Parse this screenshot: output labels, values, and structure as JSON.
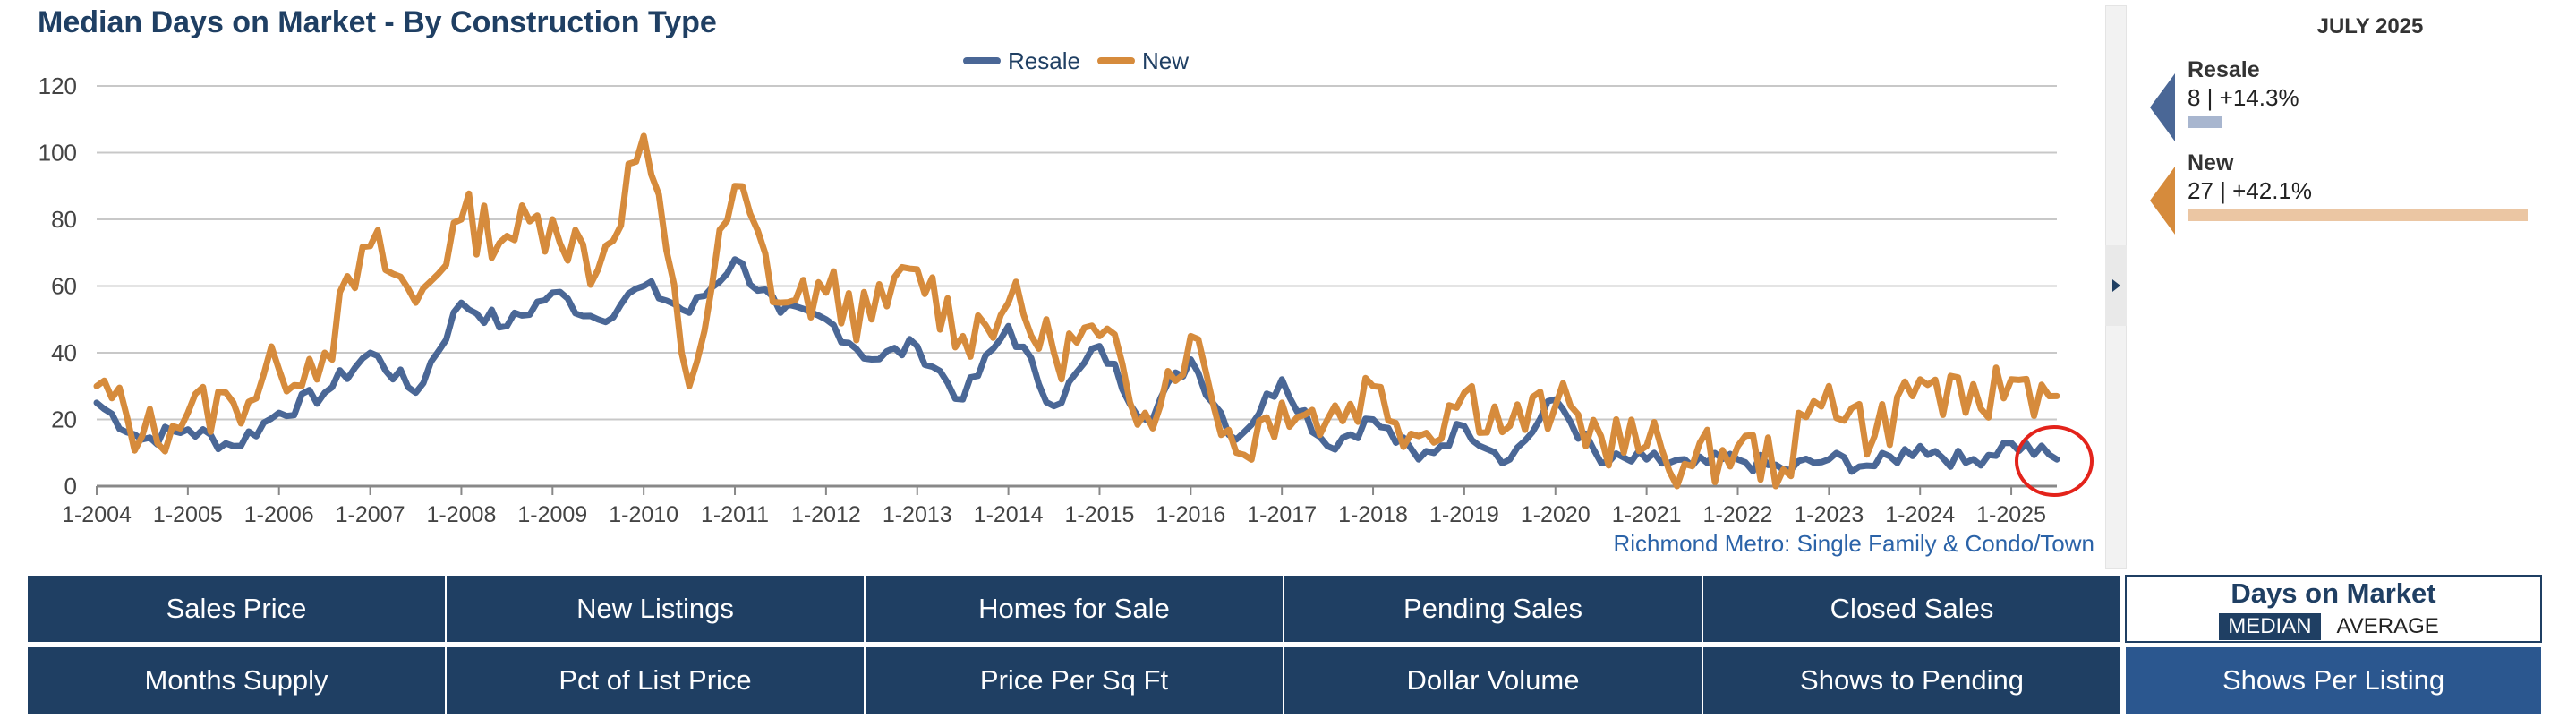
{
  "title": "Median Days on Market - By Construction Type",
  "subtitle_region": "Richmond Metro: Single Family & Condo/Town",
  "legend": [
    {
      "name": "Resale",
      "color": "#4a6796"
    },
    {
      "name": "New",
      "color": "#d68b3c"
    }
  ],
  "chart_data": {
    "type": "line",
    "title": "Median Days on Market - By Construction Type",
    "xlabel": "",
    "ylabel": "",
    "ylim": [
      0,
      120
    ],
    "yticks": [
      0,
      20,
      40,
      60,
      80,
      100,
      120
    ],
    "xticks": [
      "1-2004",
      "1-2005",
      "1-2006",
      "1-2007",
      "1-2008",
      "1-2009",
      "1-2010",
      "1-2011",
      "1-2012",
      "1-2013",
      "1-2014",
      "1-2015",
      "1-2016",
      "1-2017",
      "1-2018",
      "1-2019",
      "1-2020",
      "1-2021",
      "1-2022",
      "1-2023",
      "1-2024",
      "1-2025"
    ],
    "x_start": "1-2004",
    "x_end": "7-2025",
    "grid": true,
    "legend_position": "top-center",
    "series": [
      {
        "name": "Resale",
        "color": "#4a6796",
        "annual_points": [
          [
            "1-2004",
            25
          ],
          [
            "7-2004",
            14
          ],
          [
            "1-2005",
            17
          ],
          [
            "7-2005",
            12
          ],
          [
            "1-2006",
            22
          ],
          [
            "7-2006",
            28
          ],
          [
            "1-2007",
            40
          ],
          [
            "7-2007",
            28
          ],
          [
            "1-2008",
            55
          ],
          [
            "7-2008",
            48
          ],
          [
            "1-2009",
            58
          ],
          [
            "7-2009",
            50
          ],
          [
            "1-2010",
            60
          ],
          [
            "7-2010",
            52
          ],
          [
            "1-2011",
            68
          ],
          [
            "7-2011",
            52
          ],
          [
            "1-2012",
            50
          ],
          [
            "7-2012",
            38
          ],
          [
            "1-2013",
            42
          ],
          [
            "7-2013",
            26
          ],
          [
            "1-2014",
            48
          ],
          [
            "7-2014",
            24
          ],
          [
            "1-2015",
            42
          ],
          [
            "7-2015",
            20
          ],
          [
            "1-2016",
            38
          ],
          [
            "7-2016",
            14
          ],
          [
            "1-2017",
            32
          ],
          [
            "7-2017",
            12
          ],
          [
            "1-2018",
            20
          ],
          [
            "7-2018",
            8
          ],
          [
            "1-2019",
            18
          ],
          [
            "7-2019",
            8
          ],
          [
            "1-2020",
            26
          ],
          [
            "7-2020",
            7
          ],
          [
            "1-2021",
            8
          ],
          [
            "7-2021",
            6
          ],
          [
            "1-2022",
            8
          ],
          [
            "7-2022",
            5
          ],
          [
            "1-2023",
            8
          ],
          [
            "7-2023",
            6
          ],
          [
            "1-2024",
            12
          ],
          [
            "7-2024",
            7
          ],
          [
            "1-2025",
            13
          ],
          [
            "7-2025",
            8
          ]
        ]
      },
      {
        "name": "New",
        "color": "#d68b3c",
        "annual_points": [
          [
            "1-2004",
            30
          ],
          [
            "7-2004",
            15
          ],
          [
            "1-2005",
            22
          ],
          [
            "7-2005",
            25
          ],
          [
            "1-2006",
            35
          ],
          [
            "7-2006",
            40
          ],
          [
            "1-2007",
            72
          ],
          [
            "7-2007",
            55
          ],
          [
            "1-2008",
            80
          ],
          [
            "7-2008",
            75
          ],
          [
            "1-2009",
            80
          ],
          [
            "7-2009",
            65
          ],
          [
            "1-2010",
            105
          ],
          [
            "7-2010",
            30
          ],
          [
            "1-2011",
            90
          ],
          [
            "7-2011",
            55
          ],
          [
            "1-2012",
            58
          ],
          [
            "7-2012",
            50
          ],
          [
            "1-2013",
            65
          ],
          [
            "7-2013",
            45
          ],
          [
            "1-2014",
            55
          ],
          [
            "7-2014",
            40
          ],
          [
            "1-2015",
            45
          ],
          [
            "7-2015",
            22
          ],
          [
            "1-2016",
            45
          ],
          [
            "7-2016",
            10
          ],
          [
            "1-2017",
            25
          ],
          [
            "7-2017",
            20
          ],
          [
            "1-2018",
            30
          ],
          [
            "7-2018",
            15
          ],
          [
            "1-2019",
            28
          ],
          [
            "7-2019",
            18
          ],
          [
            "1-2020",
            24
          ],
          [
            "7-2020",
            15
          ],
          [
            "1-2021",
            12
          ],
          [
            "7-2021",
            6
          ],
          [
            "1-2022",
            12
          ],
          [
            "7-2022",
            5
          ],
          [
            "1-2023",
            30
          ],
          [
            "7-2023",
            15
          ],
          [
            "1-2024",
            32
          ],
          [
            "7-2024",
            22
          ],
          [
            "1-2025",
            32
          ],
          [
            "7-2025",
            27
          ]
        ]
      }
    ]
  },
  "summary": {
    "date": "JULY 2025",
    "items": [
      {
        "name": "Resale",
        "value": "8 | +14.3%",
        "color": "#4a6796",
        "bar_color": "#a8b6cf",
        "bar_fraction": 0.1
      },
      {
        "name": "New",
        "value": "27 | +42.1%",
        "color": "#d68b3c",
        "bar_color": "#ebc6a3",
        "bar_fraction": 1.0
      }
    ]
  },
  "tabs_row1": [
    "Sales Price",
    "New Listings",
    "Homes for Sale",
    "Pending Sales",
    "Closed Sales"
  ],
  "tabs_row2": [
    "Months Supply",
    "Pct of List Price",
    "Price Per Sq Ft",
    "Dollar Volume",
    "Shows to Pending",
    "Shows Per Listing"
  ],
  "active_metric": {
    "label": "Days on Market",
    "options": [
      "MEDIAN",
      "AVERAGE"
    ],
    "selected": "MEDIAN"
  }
}
